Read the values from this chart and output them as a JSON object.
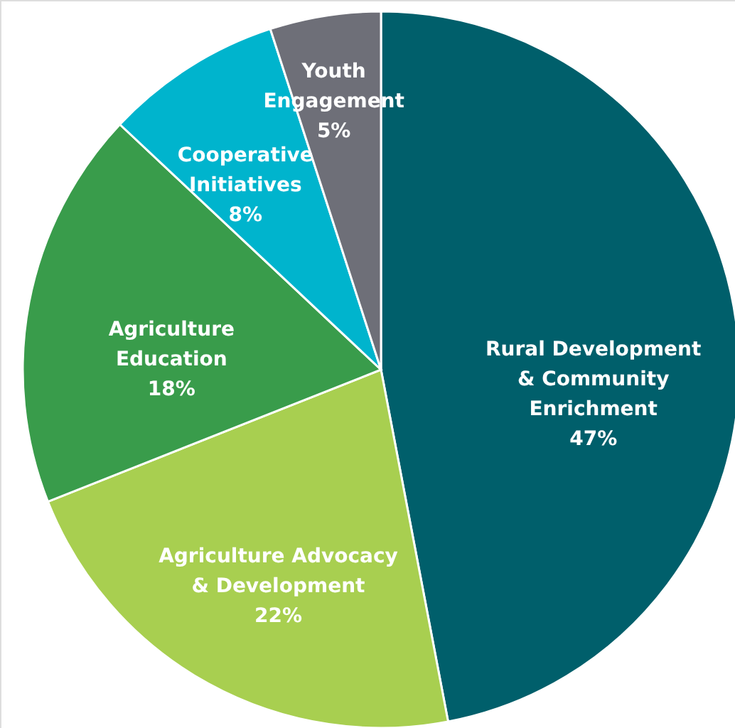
{
  "chart_data": {
    "type": "pie",
    "categories": [
      "Rural Development & Community Enrichment",
      "Agriculture Advocacy & Development",
      "Agriculture Education",
      "Cooperative Initiatives",
      "Youth Engagement"
    ],
    "values": [
      47,
      22,
      18,
      8,
      5
    ],
    "value_labels": [
      "47%",
      "22%",
      "18%",
      "8%",
      "5%"
    ],
    "colors": [
      "#005f6b",
      "#a8cf50",
      "#399c4b",
      "#00b4cd",
      "#6e6f78"
    ]
  }
}
